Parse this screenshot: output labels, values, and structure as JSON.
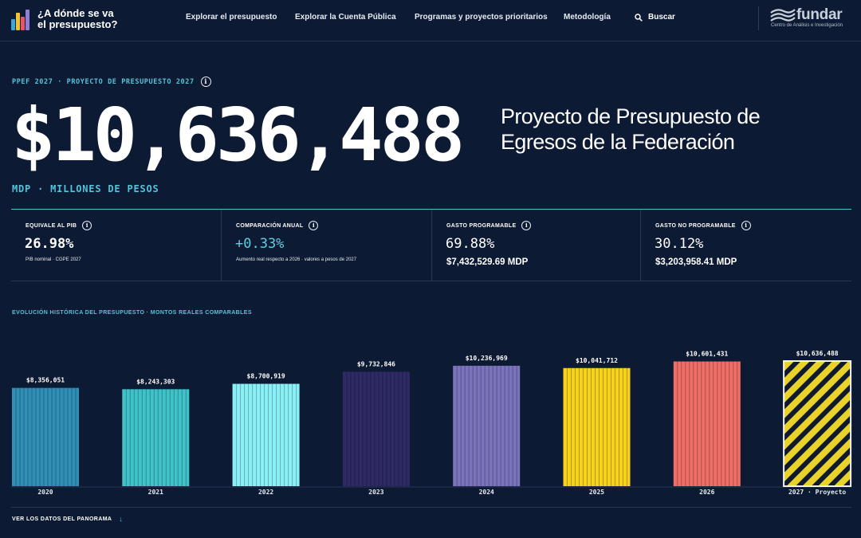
{
  "header": {
    "site_title": "¿A dónde se va el presupuesto?",
    "nav": [
      "Explorar el presupuesto",
      "Explorar la Cuenta Pública",
      "Programas y proyectos prioritarios",
      "Metodología"
    ],
    "search_label": "Buscar",
    "brand": {
      "name": "fundar",
      "subtitle": "Centro de Análisis e Investigación"
    },
    "logo_colors": [
      "#3aa7d6",
      "#f2c230",
      "#e8556a",
      "#8e7fd8"
    ]
  },
  "hero": {
    "eyebrow": "PPEF 2027 · PROYECTO DE PRESUPUESTO 2027",
    "amount": "$10,636,488",
    "unit": "MDP · MILLONES DE PESOS",
    "title": "Proyecto de Presupuesto de Egresos de la Federación"
  },
  "stats": [
    {
      "label": "EQUIVALE AL PIB",
      "value": "26.98%",
      "note": "PIB nominal · CGPE 2027"
    },
    {
      "label": "COMPARACIÓN ANUAL",
      "value": "+0.33%",
      "note": "Aumento real respecto a 2026 · valores a pesos de 2027"
    },
    {
      "label": "GASTO PROGRAMABLE",
      "value": "69.88%",
      "amount": "$7,432,529.69 MDP"
    },
    {
      "label": "GASTO NO PROGRAMABLE",
      "value": "30.12%",
      "amount": "$3,203,958.41 MDP"
    }
  ],
  "chart_section": {
    "title": "EVOLUCIÓN HISTÓRICA DEL PRESUPUESTO · MONTOS REALES COMPARABLES"
  },
  "chart_data": {
    "type": "bar",
    "categories": [
      "2020",
      "2021",
      "2022",
      "2023",
      "2024",
      "2025",
      "2026",
      "2027 · Proyecto"
    ],
    "values": [
      8356051,
      8243303,
      8700919,
      9732846,
      10236969,
      10041712,
      10601431,
      10636488
    ],
    "value_labels": [
      "$8,356,051",
      "$8,243,303",
      "$8,700,919",
      "$9,732,846",
      "$10,236,969",
      "$10,041,712",
      "$10,601,431",
      "$10,636,488"
    ],
    "colors": [
      "#2f8fb5",
      "#3fc3c8",
      "#8af0f7",
      "#2e2a66",
      "#7a74bd",
      "#f7d21a",
      "#ef6e67",
      "#e9d22a"
    ],
    "highlight_index": 7,
    "legend": "none"
  },
  "footer": {
    "link_label": "VER LOS DATOS DEL PANORAMA",
    "arrow": "↓"
  }
}
